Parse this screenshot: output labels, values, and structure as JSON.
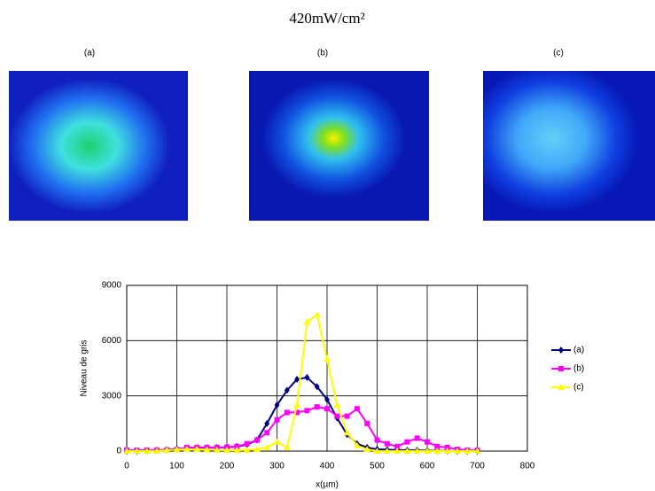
{
  "title": "420mW/cm²",
  "panels": [
    {
      "label": "(a)"
    },
    {
      "label": "(b)"
    },
    {
      "label": "(c)"
    }
  ],
  "chart_data": {
    "type": "line",
    "x_label": "x(µm)",
    "y_label": "Niveau de gris",
    "x": [
      0,
      20,
      40,
      60,
      80,
      100,
      120,
      140,
      160,
      180,
      200,
      220,
      240,
      260,
      280,
      300,
      320,
      340,
      360,
      380,
      400,
      420,
      440,
      460,
      480,
      500,
      520,
      540,
      560,
      580,
      600,
      620,
      640,
      660,
      680,
      700
    ],
    "series": [
      {
        "name": "(a)",
        "color": "#000080",
        "marker": "diamond",
        "values": [
          0,
          0,
          20,
          50,
          80,
          120,
          150,
          180,
          180,
          200,
          200,
          250,
          350,
          600,
          1500,
          2500,
          3300,
          3900,
          4000,
          3500,
          2800,
          1800,
          900,
          400,
          200,
          100,
          80,
          60,
          50,
          40,
          30,
          20,
          10,
          0,
          0,
          0
        ]
      },
      {
        "name": "(b)",
        "color": "#ff00ff",
        "marker": "square",
        "values": [
          50,
          50,
          50,
          50,
          60,
          80,
          200,
          200,
          200,
          200,
          220,
          250,
          400,
          600,
          1000,
          1700,
          2100,
          2100,
          2200,
          2400,
          2300,
          1900,
          1900,
          2300,
          1500,
          600,
          400,
          250,
          500,
          700,
          500,
          250,
          200,
          100,
          50,
          50
        ]
      },
      {
        "name": "(c)",
        "color": "#ffff00",
        "marker": "triangle",
        "values": [
          0,
          0,
          0,
          0,
          50,
          80,
          100,
          100,
          80,
          60,
          50,
          50,
          60,
          100,
          200,
          500,
          200,
          2500,
          7000,
          7400,
          5000,
          2500,
          1000,
          300,
          100,
          0,
          0,
          0,
          0,
          0,
          0,
          0,
          0,
          0,
          0,
          0
        ]
      }
    ],
    "xlim": [
      0,
      800
    ],
    "xticks": [
      0,
      100,
      200,
      300,
      400,
      500,
      600,
      700,
      800
    ],
    "ylim": [
      0,
      9000
    ],
    "yticks": [
      0,
      3000,
      6000,
      9000
    ],
    "grid": true,
    "legend": "right"
  }
}
